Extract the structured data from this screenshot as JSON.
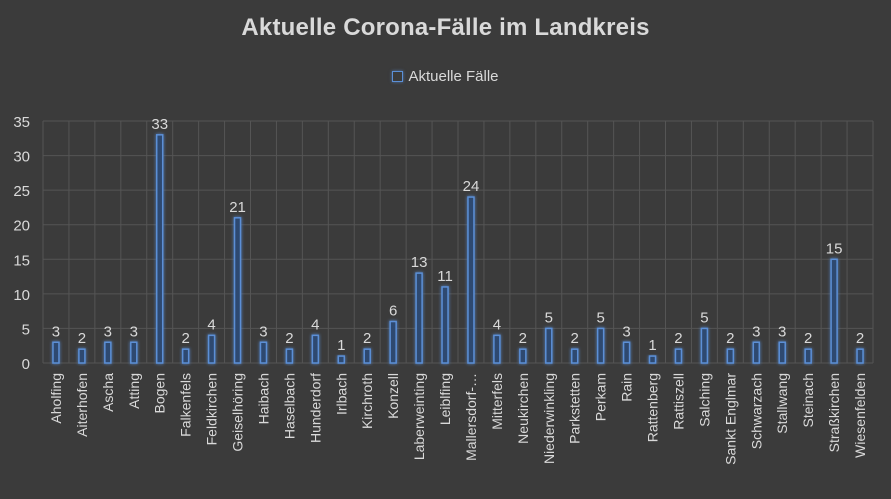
{
  "chart_data": {
    "type": "bar",
    "title": "Aktuelle Corona-Fälle im Landkreis",
    "legend": {
      "position": "top",
      "entries": [
        "Aktuelle Fälle"
      ]
    },
    "ylim": [
      0,
      35
    ],
    "yticks": [
      0,
      5,
      10,
      15,
      20,
      25,
      30,
      35
    ],
    "grid": true,
    "categories": [
      "Aholfing",
      "Aiterhofen",
      "Ascha",
      "Atting",
      "Bogen",
      "Falkenfels",
      "Feldkirchen",
      "Geiselhöring",
      "Haibach",
      "Haselbach",
      "Hunderdorf",
      "Irlbach",
      "Kirchroth",
      "Konzell",
      "Laberweinting",
      "Leiblfing",
      "Mallersdorf-…",
      "Mitterfels",
      "Neukirchen",
      "Niederwinkling",
      "Parkstetten",
      "Perkam",
      "Rain",
      "Rattenberg",
      "Rattiszell",
      "Salching",
      "Sankt Englmar",
      "Schwarzach",
      "Stallwang",
      "Steinach",
      "Straßkirchen",
      "Wiesenfelden"
    ],
    "series": [
      {
        "name": "Aktuelle Fälle",
        "values": [
          3,
          2,
          3,
          3,
          33,
          2,
          4,
          21,
          3,
          2,
          4,
          1,
          2,
          6,
          13,
          11,
          24,
          4,
          2,
          5,
          2,
          5,
          3,
          1,
          2,
          5,
          2,
          3,
          3,
          2,
          15,
          2
        ],
        "color": "#5b8fd6"
      }
    ]
  }
}
